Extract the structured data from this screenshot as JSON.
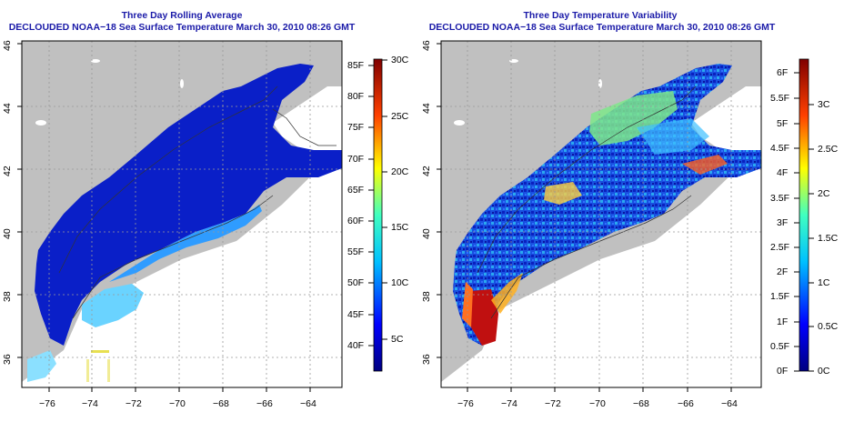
{
  "left_panel": {
    "title": "Three Day Rolling Average",
    "subtitle": "DECLOUDED NOAA−18 Sea Surface Temperature March 30, 2010 08:26 GMT",
    "lat_ticks": [
      "46",
      "44",
      "42",
      "40",
      "38",
      "36"
    ],
    "lon_ticks": [
      "−76",
      "−74",
      "−72",
      "−70",
      "−68",
      "−66",
      "−64"
    ],
    "colorbar": {
      "fahrenheit_labels": [
        "85F",
        "80F",
        "75F",
        "70F",
        "65F",
        "60F",
        "55F",
        "50F",
        "45F",
        "40F"
      ],
      "celsius_labels": [
        "30C",
        "25C",
        "20C",
        "15C",
        "10C",
        "5C"
      ]
    }
  },
  "right_panel": {
    "title": "Three Day Temperature Variability",
    "subtitle": "DECLOUDED NOAA−18 Sea Surface Temperature March 30, 2010 08:26 GMT",
    "lat_ticks": [
      "46",
      "44",
      "42",
      "40",
      "38",
      "36"
    ],
    "lon_ticks": [
      "−76",
      "−74",
      "−72",
      "−70",
      "−68",
      "−66",
      "−64"
    ],
    "colorbar": {
      "fahrenheit_labels": [
        "6F",
        "5.5F",
        "5F",
        "4.5F",
        "4F",
        "3.5F",
        "3F",
        "2.5F",
        "2F",
        "1.5F",
        "1F",
        "0.5F",
        "0F"
      ],
      "celsius_labels": [
        "3C",
        "2.5C",
        "2C",
        "1.5C",
        "1C",
        "0.5C",
        "0C"
      ]
    }
  },
  "colors": {
    "title": "#1a1aa8",
    "land": "#c0c0c0",
    "ocean_cold": "#0a1fc8",
    "ocean_mid": "#2f9cff",
    "ocean_warm": "#c01010"
  }
}
